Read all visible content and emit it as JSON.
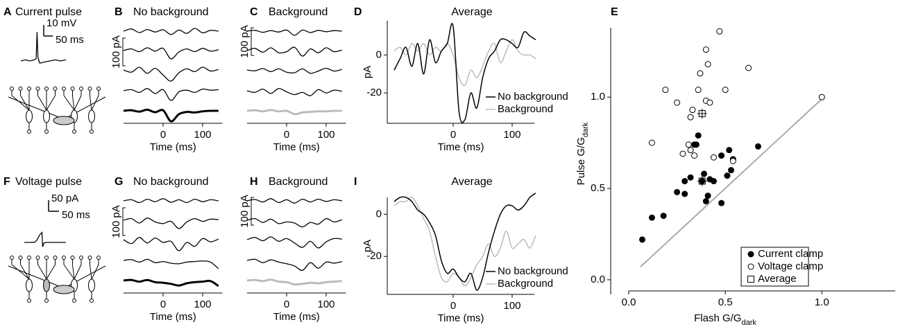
{
  "chart_data": [
    {
      "type": "pulse",
      "panel_label": "A",
      "title": "Current pulse",
      "x": [
        0,
        25,
        50,
        75,
        85,
        90,
        95,
        105,
        130,
        160,
        190,
        220,
        250
      ],
      "values": [
        0,
        1,
        0,
        1,
        2,
        26,
        3,
        -2,
        -1,
        0,
        1,
        0,
        1
      ],
      "color": "#000",
      "scale_bars": [
        {
          "value": 10,
          "label": "10 mV"
        },
        {
          "value": 50,
          "label": "50 ms"
        }
      ]
    },
    {
      "type": "traces",
      "panel_label": "B",
      "title": "No background",
      "xlabel": "Time (ms)",
      "xlim": [
        -100,
        150
      ],
      "xticks": [
        0,
        100
      ],
      "scale_bar": {
        "value": 100,
        "label": "100 pA"
      },
      "x": [
        -100,
        -80,
        -60,
        -40,
        -20,
        0,
        20,
        40,
        60,
        80,
        100,
        120,
        140
      ],
      "series": [
        {
          "color": "#000",
          "linewidth": 1.3,
          "values": [
            0,
            8,
            -5,
            6,
            -3,
            5,
            -12,
            4,
            -8,
            10,
            -6,
            3,
            0
          ]
        },
        {
          "color": "#000",
          "linewidth": 1.3,
          "values": [
            0,
            6,
            -4,
            10,
            -2,
            8,
            -30,
            -5,
            6,
            -4,
            8,
            -2,
            3
          ]
        },
        {
          "color": "#000",
          "linewidth": 1.3,
          "values": [
            0,
            -8,
            10,
            -12,
            6,
            -18,
            -40,
            -10,
            4,
            -6,
            10,
            -4,
            2
          ]
        },
        {
          "color": "#000",
          "linewidth": 1.3,
          "values": [
            0,
            4,
            -6,
            8,
            -10,
            4,
            -35,
            -4,
            2,
            -6,
            6,
            2,
            4
          ]
        },
        {
          "color": "#000",
          "linewidth": 3,
          "values": [
            0,
            2,
            -3,
            4,
            -5,
            2,
            -38,
            -12,
            -4,
            -6,
            -2,
            0,
            0
          ]
        }
      ]
    },
    {
      "type": "traces",
      "panel_label": "C",
      "title": "Background",
      "xlabel": "Time (ms)",
      "xlim": [
        -100,
        150
      ],
      "xticks": [
        0,
        100
      ],
      "scale_bar": {
        "value": 100,
        "label": "100 pA"
      },
      "x": [
        -100,
        -80,
        -60,
        -40,
        -20,
        0,
        20,
        40,
        60,
        80,
        100,
        120,
        140
      ],
      "series": [
        {
          "color": "#000",
          "linewidth": 1.3,
          "values": [
            0,
            3,
            -4,
            2,
            -3,
            4,
            -15,
            4,
            -5,
            3,
            -2,
            2,
            0
          ]
        },
        {
          "color": "#000",
          "linewidth": 1.3,
          "values": [
            0,
            8,
            -6,
            10,
            -8,
            -4,
            12,
            -20,
            6,
            -8,
            10,
            -4,
            2
          ]
        },
        {
          "color": "#000",
          "linewidth": 1.3,
          "values": [
            0,
            -3,
            5,
            -6,
            4,
            -8,
            -10,
            4,
            -12,
            -4,
            6,
            -4,
            2
          ]
        },
        {
          "color": "#000",
          "linewidth": 1.3,
          "values": [
            0,
            -6,
            6,
            -10,
            8,
            -4,
            -14,
            -6,
            -18,
            4,
            -8,
            2,
            -2
          ]
        },
        {
          "color": "#bbb",
          "linewidth": 3,
          "values": [
            0,
            2,
            -2,
            3,
            -2,
            0,
            -12,
            -6,
            -4,
            -2,
            -2,
            0,
            0
          ]
        }
      ]
    },
    {
      "type": "line",
      "panel_label": "D",
      "title": "Average",
      "xlabel": "Time (ms)",
      "ylabel": "pA",
      "xlim": [
        -112,
        138
      ],
      "ylim": [
        -36,
        18
      ],
      "xticks": [
        0,
        100
      ],
      "yticks": [
        0,
        -20
      ],
      "x": [
        -100,
        -90,
        -80,
        -70,
        -60,
        -50,
        -40,
        -30,
        -20,
        -10,
        0,
        10,
        20,
        30,
        40,
        50,
        60,
        70,
        80,
        90,
        100,
        110,
        120,
        130,
        140
      ],
      "series": [
        {
          "name": "No background",
          "color": "#000",
          "values": [
            -8,
            -2,
            4,
            -6,
            6,
            -10,
            8,
            -4,
            2,
            6,
            15,
            -30,
            -34,
            -20,
            -28,
            -12,
            -2,
            2,
            8,
            8,
            6,
            4,
            12,
            10,
            8
          ]
        },
        {
          "name": "Background",
          "color": "#bbb",
          "values": [
            2,
            4,
            0,
            6,
            2,
            6,
            0,
            4,
            2,
            6,
            0,
            -12,
            -16,
            -8,
            -12,
            -6,
            2,
            6,
            -4,
            2,
            8,
            2,
            0,
            0,
            -2
          ]
        }
      ]
    },
    {
      "type": "scatter",
      "panel_label": "E",
      "xlabel": {
        "text": "Flash G/G",
        "subscript": "dark"
      },
      "ylabel": {
        "text": "Pulse G/G",
        "subscript": "dark"
      },
      "xlim": [
        0,
        1.38
      ],
      "ylim": [
        -0.08,
        1.38
      ],
      "xticks": [
        {
          "value": 0,
          "label": "0.0"
        },
        0.5,
        {
          "value": 1,
          "label": "1.0"
        }
      ],
      "yticks": [
        {
          "value": 0,
          "label": "0.0"
        },
        0.5,
        {
          "value": 1,
          "label": "1.0"
        }
      ],
      "reference_line": {
        "x": [
          0.06,
          1
        ],
        "y": [
          0.07,
          0.99
        ],
        "color": "#aaa"
      },
      "series": [
        {
          "name": "Current clamp",
          "marker": "filled-circle",
          "color": "#000",
          "x": [
            0.07,
            0.12,
            0.18,
            0.25,
            0.29,
            0.29,
            0.32,
            0.34,
            0.36,
            0.38,
            0.39,
            0.4,
            0.41,
            0.42,
            0.44,
            0.48,
            0.48,
            0.51,
            0.52,
            0.53,
            0.54,
            0.67,
            0.35
          ],
          "y": [
            0.22,
            0.34,
            0.35,
            0.48,
            0.47,
            0.54,
            0.56,
            0.74,
            0.79,
            0.54,
            0.58,
            0.43,
            0.46,
            0.55,
            0.54,
            0.68,
            0.42,
            0.57,
            0.71,
            0.6,
            0.66,
            0.73,
            0.74
          ]
        },
        {
          "name": "Voltage clamp",
          "marker": "open-circle",
          "color": "#000",
          "x": [
            0.12,
            0.19,
            0.25,
            0.28,
            0.31,
            0.32,
            0.32,
            0.33,
            0.36,
            0.37,
            0.4,
            0.4,
            0.41,
            0.42,
            0.44,
            0.47,
            0.5,
            0.54,
            0.62,
            1,
            0.34
          ],
          "y": [
            0.75,
            1.04,
            0.97,
            0.69,
            0.74,
            0.71,
            0.89,
            0.93,
            1.04,
            1.13,
            0.98,
            1.26,
            1.18,
            0.97,
            0.67,
            1.36,
            1.04,
            0.65,
            1.16,
            1,
            0.68
          ]
        },
        {
          "name": "Average",
          "marker": "crossed-square",
          "color": "#000",
          "x": [
            0.38,
            0.38
          ],
          "y": [
            0.91,
            0.54
          ]
        }
      ]
    },
    {
      "type": "pulse",
      "panel_label": "F",
      "title": "Voltage pulse",
      "x": [
        0,
        25,
        50,
        60,
        75,
        85,
        88,
        95,
        110,
        140,
        170,
        200
      ],
      "values": [
        0,
        0,
        1,
        10,
        35,
        45,
        -20,
        -2,
        0,
        0,
        0,
        0
      ],
      "color": "#000",
      "scale_bars": [
        {
          "value": 50,
          "label": "50 pA"
        },
        {
          "value": 50,
          "label": "50 ms"
        }
      ]
    },
    {
      "type": "traces",
      "panel_label": "G",
      "title": "No background",
      "xlabel": "Time (ms)",
      "xlim": [
        -100,
        150
      ],
      "xticks": [
        0,
        100
      ],
      "scale_bar": {
        "value": 100,
        "label": "100 pA"
      },
      "x": [
        -100,
        -80,
        -60,
        -40,
        -20,
        0,
        20,
        40,
        60,
        80,
        100,
        120,
        140
      ],
      "series": [
        {
          "color": "#000",
          "linewidth": 1.3,
          "values": [
            0,
            4,
            -6,
            6,
            -3,
            8,
            -5,
            4,
            -6,
            6,
            -3,
            4,
            0
          ]
        },
        {
          "color": "#000",
          "linewidth": 1.3,
          "values": [
            0,
            6,
            -10,
            8,
            -6,
            -12,
            -4,
            -30,
            -6,
            6,
            -4,
            4,
            2
          ]
        },
        {
          "color": "#000",
          "linewidth": 1.3,
          "values": [
            0,
            -14,
            8,
            -12,
            6,
            -10,
            -6,
            -40,
            -10,
            -24,
            4,
            -8,
            2
          ]
        },
        {
          "color": "#000",
          "linewidth": 1.3,
          "values": [
            0,
            3,
            -6,
            4,
            -8,
            -4,
            -10,
            -12,
            -6,
            -4,
            -2,
            -6,
            -30
          ]
        },
        {
          "color": "#000",
          "linewidth": 3,
          "values": [
            0,
            2,
            -4,
            2,
            -6,
            -8,
            -12,
            -18,
            -10,
            -6,
            -4,
            -2,
            -20
          ]
        }
      ]
    },
    {
      "type": "traces",
      "panel_label": "H",
      "title": "Background",
      "xlabel": "Time (ms)",
      "xlim": [
        -100,
        150
      ],
      "xticks": [
        0,
        100
      ],
      "scale_bar": {
        "value": 100,
        "label": "100 pA"
      },
      "x": [
        -100,
        -80,
        -60,
        -40,
        -20,
        0,
        20,
        40,
        60,
        80,
        100,
        120,
        140
      ],
      "series": [
        {
          "color": "#000",
          "linewidth": 1.3,
          "values": [
            0,
            5,
            -4,
            8,
            -6,
            4,
            -8,
            6,
            -4,
            6,
            -2,
            4,
            0
          ]
        },
        {
          "color": "#000",
          "linewidth": 1.3,
          "values": [
            0,
            6,
            -8,
            4,
            -12,
            -6,
            -10,
            -24,
            -8,
            -14,
            6,
            -6,
            2
          ]
        },
        {
          "color": "#000",
          "linewidth": 1.3,
          "values": [
            0,
            8,
            -4,
            10,
            -6,
            4,
            -12,
            -28,
            -6,
            -30,
            -8,
            4,
            2
          ]
        },
        {
          "color": "#000",
          "linewidth": 1.3,
          "values": [
            0,
            4,
            -8,
            2,
            -6,
            -12,
            -20,
            -36,
            -8,
            -28,
            -6,
            -10,
            -4
          ]
        },
        {
          "color": "#bbb",
          "linewidth": 3,
          "values": [
            0,
            2,
            -2,
            3,
            -4,
            -6,
            -14,
            -12,
            -8,
            -10,
            -6,
            -4,
            -2
          ]
        }
      ]
    },
    {
      "type": "line",
      "panel_label": "I",
      "title": "Average",
      "xlabel": "Time (ms)",
      "ylabel": "pA",
      "xlim": [
        -112,
        138
      ],
      "ylim": [
        -38,
        8
      ],
      "xticks": [
        0,
        100
      ],
      "yticks": [
        0,
        -20
      ],
      "x": [
        -100,
        -90,
        -80,
        -70,
        -60,
        -50,
        -40,
        -30,
        -20,
        -10,
        0,
        10,
        20,
        30,
        40,
        50,
        60,
        70,
        80,
        90,
        100,
        110,
        120,
        130,
        140
      ],
      "series": [
        {
          "name": "No background",
          "color": "#000",
          "values": [
            6,
            8,
            8,
            6,
            2,
            0,
            -4,
            -10,
            -22,
            -28,
            -26,
            -30,
            -32,
            -28,
            -36,
            -30,
            -18,
            -8,
            0,
            4,
            4,
            2,
            4,
            8,
            10
          ]
        },
        {
          "name": "Background",
          "color": "#bbb",
          "values": [
            4,
            6,
            6,
            8,
            4,
            -2,
            -8,
            -20,
            -30,
            -32,
            -28,
            -30,
            -34,
            -30,
            -24,
            -20,
            -14,
            -20,
            -16,
            -8,
            -16,
            -14,
            -12,
            -16,
            -10
          ]
        }
      ]
    }
  ]
}
